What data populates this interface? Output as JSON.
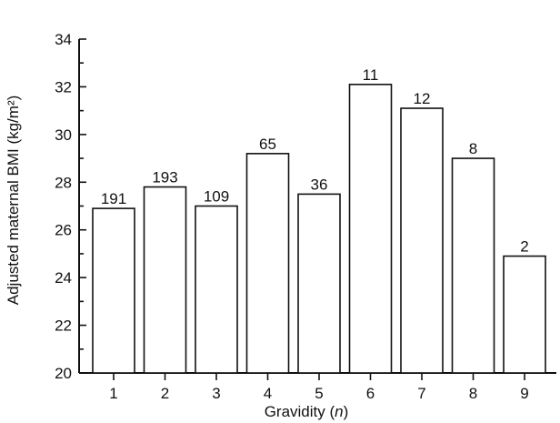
{
  "chart_data": {
    "type": "bar",
    "categories": [
      "1",
      "2",
      "3",
      "4",
      "5",
      "6",
      "7",
      "8",
      "9"
    ],
    "values": [
      26.9,
      27.8,
      27.0,
      29.2,
      27.5,
      32.1,
      31.1,
      29.0,
      24.9
    ],
    "data_labels": [
      "191",
      "193",
      "109",
      "65",
      "36",
      "11",
      "12",
      "8",
      "2"
    ],
    "title": "",
    "xlabel": {
      "prefix": "Gravidity (",
      "italic": "n",
      "suffix": ")"
    },
    "ylabel": "Adjusted maternal BMI (kg/m²)",
    "ylim": [
      20,
      34
    ],
    "yticks": [
      "20",
      "22",
      "24",
      "26",
      "28",
      "30",
      "32",
      "34"
    ],
    "grid": false,
    "bar_fill": "#ffffff",
    "bar_stroke": "#111111"
  }
}
